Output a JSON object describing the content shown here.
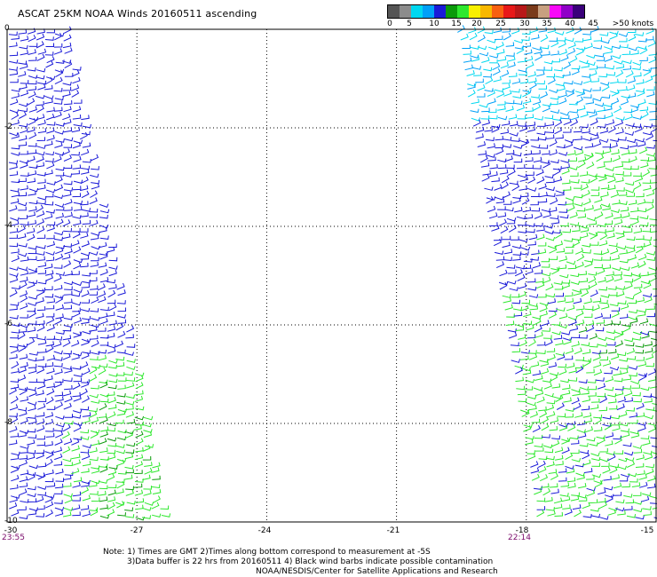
{
  "title": "ASCAT 25KM NOAA Winds 20160511 ascending",
  "legend": {
    "colors": [
      "#555555",
      "#8c8c8c",
      "#00d8f0",
      "#00a0f8",
      "#1a1ad8",
      "#0a9a0a",
      "#2ee82e",
      "#f8f000",
      "#f8b800",
      "#f86010",
      "#e81818",
      "#b81818",
      "#7a3a1a",
      "#c8a080",
      "#f808f8",
      "#9000c8",
      "#3a007a"
    ],
    "labels": [
      "0",
      "5",
      "10",
      "15",
      "20",
      "25",
      "30",
      "35",
      "40",
      "45",
      ">50 knots"
    ]
  },
  "map": {
    "lon_range": [
      -30,
      -15
    ],
    "lat_range": [
      -10,
      0
    ],
    "x_ticks": [
      "-30",
      "-27",
      "-24",
      "-21",
      "-18",
      "-15"
    ],
    "y_ticks": [
      "0",
      "-2",
      "-4",
      "-6",
      "-8",
      "-10"
    ]
  },
  "times": {
    "left": "23:55",
    "right": "22:14"
  },
  "notes": {
    "line1": "Note: 1) Times are GMT 2)Times along bottom correspond to measurement at -5S",
    "line2": "3)Data buffer is 22 hrs from 20160511 4) Black wind barbs indicate possible contamination",
    "line3": "NOAA/NESDIS/Center for Satellite Applications and Research"
  }
}
